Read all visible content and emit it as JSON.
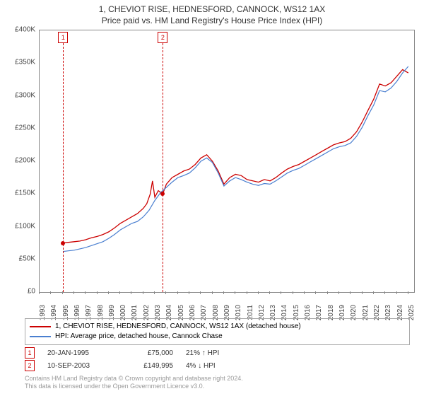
{
  "title": "1, CHEVIOT RISE, HEDNESFORD, CANNOCK, WS12 1AX",
  "subtitle": "Price paid vs. HM Land Registry's House Price Index (HPI)",
  "chart": {
    "type": "line",
    "background_color": "#ffffff",
    "grid_color": "#dddddd",
    "border_color": "#888888",
    "ylim": [
      0,
      400000
    ],
    "ytick_step": 50000,
    "yticks": [
      "£0",
      "£50K",
      "£100K",
      "£150K",
      "£200K",
      "£250K",
      "£300K",
      "£350K",
      "£400K"
    ],
    "xlim": [
      1993,
      2025.5
    ],
    "xticks": [
      1993,
      1994,
      1995,
      1996,
      1997,
      1998,
      1999,
      2000,
      2001,
      2002,
      2003,
      2004,
      2005,
      2006,
      2007,
      2008,
      2009,
      2010,
      2011,
      2012,
      2013,
      2014,
      2015,
      2016,
      2017,
      2018,
      2019,
      2020,
      2021,
      2022,
      2023,
      2024,
      2025
    ],
    "series": [
      {
        "id": "red",
        "label": "1, CHEVIOT RISE, HEDNESFORD, CANNOCK, WS12 1AX (detached house)",
        "color": "#cc0000",
        "line_width": 1.3,
        "points": [
          [
            1995.05,
            75000
          ],
          [
            1995.5,
            76000
          ],
          [
            1996,
            77000
          ],
          [
            1996.5,
            78000
          ],
          [
            1997,
            80000
          ],
          [
            1997.5,
            83000
          ],
          [
            1998,
            85000
          ],
          [
            1998.5,
            88000
          ],
          [
            1999,
            92000
          ],
          [
            1999.5,
            98000
          ],
          [
            2000,
            105000
          ],
          [
            2000.5,
            110000
          ],
          [
            2001,
            115000
          ],
          [
            2001.5,
            120000
          ],
          [
            2002,
            128000
          ],
          [
            2002.3,
            135000
          ],
          [
            2002.6,
            150000
          ],
          [
            2002.8,
            170000
          ],
          [
            2003,
            145000
          ],
          [
            2003.3,
            155000
          ],
          [
            2003.69,
            149995
          ],
          [
            2004,
            165000
          ],
          [
            2004.5,
            175000
          ],
          [
            2005,
            180000
          ],
          [
            2005.5,
            185000
          ],
          [
            2006,
            188000
          ],
          [
            2006.5,
            195000
          ],
          [
            2007,
            205000
          ],
          [
            2007.5,
            210000
          ],
          [
            2008,
            200000
          ],
          [
            2008.5,
            185000
          ],
          [
            2009,
            165000
          ],
          [
            2009.5,
            175000
          ],
          [
            2010,
            180000
          ],
          [
            2010.5,
            178000
          ],
          [
            2011,
            172000
          ],
          [
            2011.5,
            170000
          ],
          [
            2012,
            168000
          ],
          [
            2012.5,
            172000
          ],
          [
            2013,
            170000
          ],
          [
            2013.5,
            175000
          ],
          [
            2014,
            182000
          ],
          [
            2014.5,
            188000
          ],
          [
            2015,
            192000
          ],
          [
            2015.5,
            195000
          ],
          [
            2016,
            200000
          ],
          [
            2016.5,
            205000
          ],
          [
            2017,
            210000
          ],
          [
            2017.5,
            215000
          ],
          [
            2018,
            220000
          ],
          [
            2018.5,
            225000
          ],
          [
            2019,
            228000
          ],
          [
            2019.5,
            230000
          ],
          [
            2020,
            235000
          ],
          [
            2020.5,
            245000
          ],
          [
            2021,
            260000
          ],
          [
            2021.5,
            278000
          ],
          [
            2022,
            295000
          ],
          [
            2022.5,
            318000
          ],
          [
            2023,
            315000
          ],
          [
            2023.5,
            320000
          ],
          [
            2024,
            330000
          ],
          [
            2024.5,
            340000
          ],
          [
            2025,
            335000
          ]
        ]
      },
      {
        "id": "blue",
        "label": "HPI: Average price, detached house, Cannock Chase",
        "color": "#4a7fd0",
        "line_width": 1.2,
        "points": [
          [
            1995.05,
            62000
          ],
          [
            1995.5,
            63000
          ],
          [
            1996,
            64000
          ],
          [
            1996.5,
            66000
          ],
          [
            1997,
            68000
          ],
          [
            1997.5,
            71000
          ],
          [
            1998,
            74000
          ],
          [
            1998.5,
            77000
          ],
          [
            1999,
            82000
          ],
          [
            1999.5,
            88000
          ],
          [
            2000,
            95000
          ],
          [
            2000.5,
            100000
          ],
          [
            2001,
            105000
          ],
          [
            2001.5,
            108000
          ],
          [
            2002,
            115000
          ],
          [
            2002.5,
            125000
          ],
          [
            2003,
            140000
          ],
          [
            2003.5,
            152000
          ],
          [
            2004,
            160000
          ],
          [
            2004.5,
            168000
          ],
          [
            2005,
            175000
          ],
          [
            2005.5,
            178000
          ],
          [
            2006,
            182000
          ],
          [
            2006.5,
            190000
          ],
          [
            2007,
            200000
          ],
          [
            2007.5,
            205000
          ],
          [
            2008,
            198000
          ],
          [
            2008.5,
            182000
          ],
          [
            2009,
            162000
          ],
          [
            2009.5,
            170000
          ],
          [
            2010,
            175000
          ],
          [
            2010.5,
            172000
          ],
          [
            2011,
            168000
          ],
          [
            2011.5,
            165000
          ],
          [
            2012,
            163000
          ],
          [
            2012.5,
            166000
          ],
          [
            2013,
            165000
          ],
          [
            2013.5,
            170000
          ],
          [
            2014,
            176000
          ],
          [
            2014.5,
            182000
          ],
          [
            2015,
            186000
          ],
          [
            2015.5,
            189000
          ],
          [
            2016,
            194000
          ],
          [
            2016.5,
            199000
          ],
          [
            2017,
            204000
          ],
          [
            2017.5,
            209000
          ],
          [
            2018,
            214000
          ],
          [
            2018.5,
            219000
          ],
          [
            2019,
            222000
          ],
          [
            2019.5,
            224000
          ],
          [
            2020,
            228000
          ],
          [
            2020.5,
            238000
          ],
          [
            2021,
            252000
          ],
          [
            2021.5,
            270000
          ],
          [
            2022,
            286000
          ],
          [
            2022.5,
            308000
          ],
          [
            2023,
            306000
          ],
          [
            2023.5,
            312000
          ],
          [
            2024,
            322000
          ],
          [
            2024.5,
            335000
          ],
          [
            2025,
            345000
          ]
        ]
      }
    ],
    "markers": [
      {
        "num": "1",
        "x": 1995.05,
        "color": "#cc0000"
      },
      {
        "num": "2",
        "x": 2003.69,
        "color": "#cc0000"
      }
    ],
    "sale_points": [
      {
        "x": 1995.05,
        "y": 75000,
        "color": "#cc0000"
      },
      {
        "x": 2003.69,
        "y": 149995,
        "color": "#cc0000"
      }
    ]
  },
  "legend": {
    "border_color": "#aaaaaa",
    "items": [
      {
        "color": "#cc0000",
        "label": "1, CHEVIOT RISE, HEDNESFORD, CANNOCK, WS12 1AX (detached house)"
      },
      {
        "color": "#4a7fd0",
        "label": "HPI: Average price, detached house, Cannock Chase"
      }
    ]
  },
  "sales": [
    {
      "num": "1",
      "color": "#cc0000",
      "date": "20-JAN-1995",
      "price": "£75,000",
      "pct": "21% ↑ HPI"
    },
    {
      "num": "2",
      "color": "#cc0000",
      "date": "10-SEP-2003",
      "price": "£149,995",
      "pct": "4% ↓ HPI"
    }
  ],
  "attribution": {
    "line1": "Contains HM Land Registry data © Crown copyright and database right 2024.",
    "line2": "This data is licensed under the Open Government Licence v3.0."
  }
}
